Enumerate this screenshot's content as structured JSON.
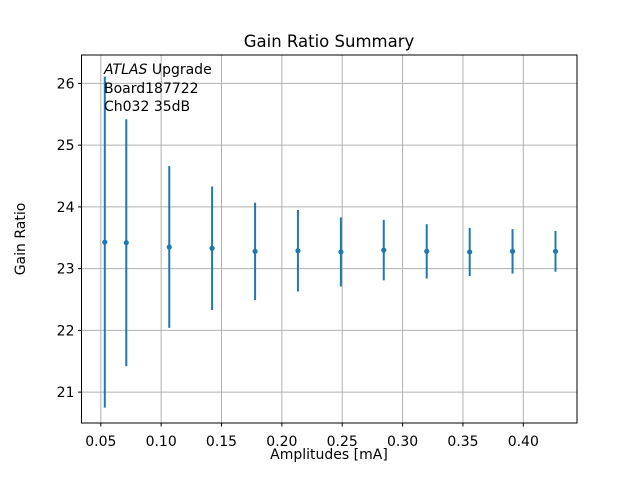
{
  "chart_data": {
    "type": "scatter",
    "subtype": "errorbar",
    "title": "Gain Ratio Summary",
    "xlabel": "Amplitudes [mA]",
    "ylabel": "Gain Ratio",
    "x": [
      0.0533,
      0.0711,
      0.1067,
      0.1422,
      0.1778,
      0.2133,
      0.2489,
      0.2844,
      0.32,
      0.3556,
      0.3911,
      0.4267
    ],
    "y": [
      23.43,
      23.42,
      23.35,
      23.33,
      23.28,
      23.29,
      23.27,
      23.3,
      23.28,
      23.27,
      23.28,
      23.28
    ],
    "yerr": [
      2.68,
      2.0,
      1.31,
      1.0,
      0.79,
      0.66,
      0.56,
      0.49,
      0.44,
      0.39,
      0.36,
      0.33
    ],
    "xlim": [
      0.034,
      0.4445
    ],
    "ylim": [
      20.5,
      26.46
    ],
    "xticks": [
      0.05,
      0.1,
      0.15,
      0.2,
      0.25,
      0.3,
      0.35,
      0.4
    ],
    "xtick_labels": [
      "0.05",
      "0.10",
      "0.15",
      "0.20",
      "0.25",
      "0.30",
      "0.35",
      "0.40"
    ],
    "yticks": [
      21,
      22,
      23,
      24,
      25,
      26
    ],
    "ytick_labels": [
      "21",
      "22",
      "23",
      "24",
      "25",
      "26"
    ],
    "grid": true,
    "legend": "none",
    "annotation": {
      "experiment": "ATLAS",
      "experiment_suffix": " Upgrade",
      "board": "Board187722",
      "channel": "Ch032 35dB"
    },
    "colors": {
      "series": "#1f77b4",
      "grid": "#b0b0b0",
      "spine": "#000000",
      "background": "#ffffff",
      "text": "#000000"
    }
  }
}
